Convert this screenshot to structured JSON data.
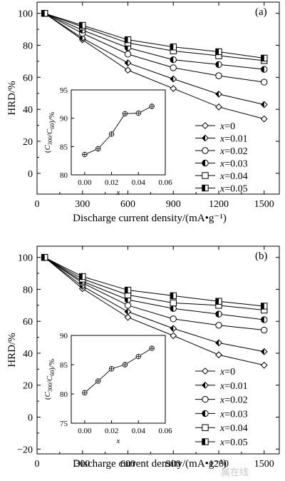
{
  "watermark": "属在线",
  "chart_data": [
    {
      "type": "line",
      "panel_label": "(a)",
      "xlabel": "Discharge current density/(mA•g⁻¹)",
      "ylabel": "HRD/%",
      "xlim": [
        0,
        1600
      ],
      "ylim": [
        -13,
        107
      ],
      "xticks": [
        0,
        300,
        600,
        900,
        1200,
        1500
      ],
      "yticks": [
        0,
        20,
        40,
        60,
        80,
        100
      ],
      "x": [
        50,
        300,
        600,
        900,
        1200,
        1500
      ],
      "legend_position": "lower-right",
      "series": [
        {
          "name": "x=0",
          "marker": "diamond-open",
          "values": [
            100,
            83.5,
            64.5,
            53,
            41.5,
            34
          ]
        },
        {
          "name": "x=0.01",
          "marker": "diamond-half",
          "values": [
            100,
            84.5,
            69,
            59,
            49.5,
            43
          ]
        },
        {
          "name": "x=0.02",
          "marker": "circle-open",
          "values": [
            100,
            87.5,
            74.5,
            66,
            61,
            57
          ]
        },
        {
          "name": "x=0.03",
          "marker": "circle-half",
          "values": [
            100,
            89.5,
            78.5,
            71,
            68,
            65
          ]
        },
        {
          "name": "x=0.04",
          "marker": "square-open",
          "values": [
            100,
            91.5,
            81.5,
            76.5,
            73.5,
            70.5
          ]
        },
        {
          "name": "x=0.05",
          "marker": "square-half",
          "values": [
            100,
            92.5,
            83.5,
            79,
            76,
            72
          ]
        }
      ],
      "inset": {
        "xlabel": "x",
        "ylabel": "(C300/C60)/%",
        "xlim": [
          -0.01,
          0.06
        ],
        "ylim": [
          80,
          95
        ],
        "xticks": [
          0.0,
          0.02,
          0.04,
          0.06
        ],
        "xtick_labels": [
          "0.00",
          "0.02",
          "0.04",
          "0.06"
        ],
        "yticks": [
          80,
          85,
          90,
          95
        ],
        "x": [
          0,
          0.01,
          0.02,
          0.03,
          0.04,
          0.05
        ],
        "values": [
          83.6,
          84.6,
          87.2,
          90.8,
          90.9,
          92.1
        ]
      }
    },
    {
      "type": "line",
      "panel_label": "(b)",
      "xlabel": "Discharge current density/(mA•g⁻¹)",
      "ylabel": "HRD/%",
      "xlim": [
        0,
        1600
      ],
      "ylim": [
        -23,
        107
      ],
      "xticks": [
        0,
        300,
        600,
        900,
        1200,
        1500
      ],
      "yticks": [
        -20,
        0,
        20,
        40,
        60,
        80,
        100
      ],
      "x": [
        50,
        300,
        600,
        900,
        1200,
        1500
      ],
      "legend_position": "lower-right",
      "series": [
        {
          "name": "x=0",
          "marker": "diamond-open",
          "values": [
            100,
            80.5,
            62.5,
            51,
            39,
            32.5
          ]
        },
        {
          "name": "x=0.01",
          "marker": "diamond-half",
          "values": [
            100,
            82,
            66,
            55.5,
            46.5,
            41
          ]
        },
        {
          "name": "x=0.02",
          "marker": "circle-open",
          "values": [
            100,
            84,
            70,
            61.5,
            57.5,
            54.5
          ]
        },
        {
          "name": "x=0.03",
          "marker": "circle-half",
          "values": [
            100,
            85,
            73.5,
            68,
            64.5,
            61
          ]
        },
        {
          "name": "x=0.04",
          "marker": "square-open",
          "values": [
            100,
            86.5,
            76.5,
            71.5,
            70,
            67
          ]
        },
        {
          "name": "x=0.05",
          "marker": "square-half",
          "values": [
            100,
            88,
            79.5,
            76,
            72.5,
            69.5
          ]
        }
      ],
      "inset": {
        "xlabel": "x",
        "ylabel": "(C300/C60)/%",
        "xlim": [
          -0.01,
          0.06
        ],
        "ylim": [
          75,
          90
        ],
        "xticks": [
          0.0,
          0.02,
          0.04,
          0.06
        ],
        "xtick_labels": [
          "0.00",
          "0.02",
          "0.04",
          "0.06"
        ],
        "yticks": [
          75,
          80,
          85,
          90
        ],
        "x": [
          0,
          0.01,
          0.02,
          0.03,
          0.04,
          0.05
        ],
        "values": [
          80.2,
          82.2,
          84.3,
          85.0,
          86.4,
          87.8
        ]
      }
    }
  ]
}
